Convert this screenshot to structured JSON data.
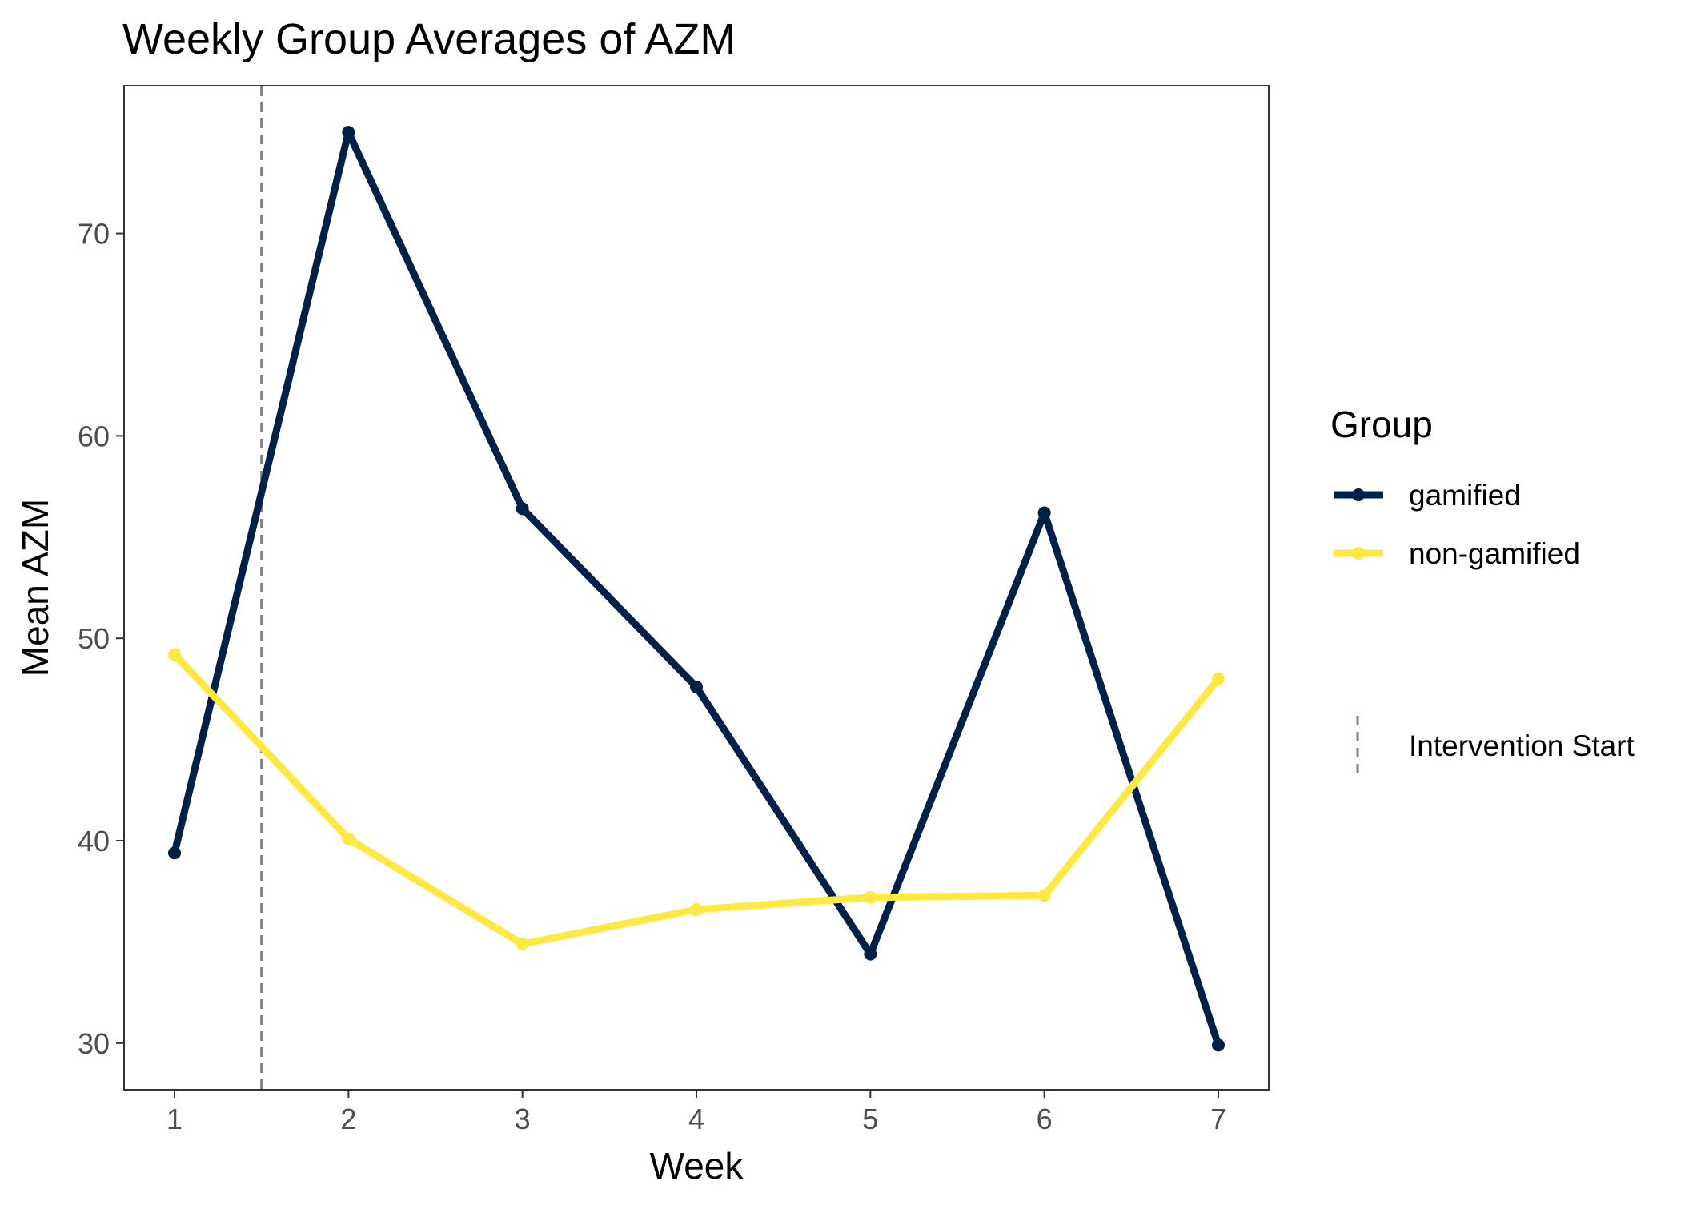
{
  "chart_data": {
    "type": "line",
    "title": "Weekly Group Averages of AZM",
    "xlabel": "Week",
    "ylabel": "Mean AZM",
    "x": [
      1,
      2,
      3,
      4,
      5,
      6,
      7
    ],
    "x_tick_labels": [
      "1",
      "2",
      "3",
      "4",
      "5",
      "6",
      "7"
    ],
    "xlim": [
      0.71,
      7.29
    ],
    "y_ticks": [
      30,
      40,
      50,
      60,
      70
    ],
    "y_tick_labels": [
      "30",
      "40",
      "50",
      "60",
      "70"
    ],
    "ylim": [
      27.7,
      77.3
    ],
    "grid": false,
    "series": [
      {
        "name": "gamified",
        "color": "#002147",
        "values": [
          39.4,
          75.0,
          56.4,
          47.6,
          34.4,
          56.2,
          29.9
        ]
      },
      {
        "name": "non-gamified",
        "color": "#FFE744",
        "values": [
          49.2,
          40.1,
          34.9,
          36.6,
          37.2,
          37.3,
          48.0
        ]
      }
    ],
    "reference_line": {
      "x": 1.5,
      "style": "dashed",
      "color": "#7f7f7f",
      "label": "Intervention Start"
    },
    "legend": {
      "title": "Group",
      "position": "right"
    }
  }
}
